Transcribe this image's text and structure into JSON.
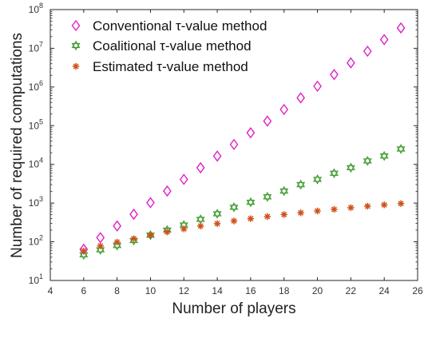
{
  "chart_data": {
    "type": "scatter",
    "xlabel": "Number of players",
    "ylabel": "Number of required computations",
    "xlim": [
      4,
      26
    ],
    "ylim": [
      10,
      100000000
    ],
    "y_scale": "log",
    "grid": false,
    "legend_position": "top-left",
    "x_ticks": [
      4,
      6,
      8,
      10,
      12,
      14,
      16,
      18,
      20,
      22,
      24,
      26
    ],
    "y_ticks": [
      {
        "base": "10",
        "exp": "1"
      },
      {
        "base": "10",
        "exp": "2"
      },
      {
        "base": "10",
        "exp": "3"
      },
      {
        "base": "10",
        "exp": "4"
      },
      {
        "base": "10",
        "exp": "5"
      },
      {
        "base": "10",
        "exp": "6"
      },
      {
        "base": "10",
        "exp": "7"
      },
      {
        "base": "10",
        "exp": "8"
      }
    ],
    "x": [
      6,
      7,
      8,
      9,
      10,
      11,
      12,
      13,
      14,
      15,
      16,
      17,
      18,
      19,
      20,
      21,
      22,
      23,
      24,
      25
    ],
    "series": [
      {
        "name": "Conventional τ-value method",
        "marker": "diamond",
        "color": "#e020c8",
        "values": [
          64,
          128,
          256,
          512,
          1024,
          2048,
          4096,
          8192,
          16384,
          32768,
          65536,
          131072,
          262144,
          524288,
          1048576,
          2097152,
          4194304,
          8388608,
          16777216,
          33554432
        ]
      },
      {
        "name": "Coalitional τ-value method",
        "marker": "hexagram",
        "color": "#3a9a2a",
        "values": [
          46,
          62,
          80,
          108,
          148,
          200,
          270,
          380,
          530,
          780,
          1050,
          1450,
          2050,
          3000,
          4100,
          5900,
          8200,
          12300,
          16500,
          25000
        ]
      },
      {
        "name": "Estimated τ-value method",
        "marker": "asterisk",
        "color": "#d0501a",
        "values": [
          58,
          78,
          98,
          120,
          148,
          180,
          215,
          255,
          295,
          345,
          395,
          450,
          505,
          560,
          625,
          690,
          760,
          830,
          900,
          970
        ]
      }
    ]
  }
}
